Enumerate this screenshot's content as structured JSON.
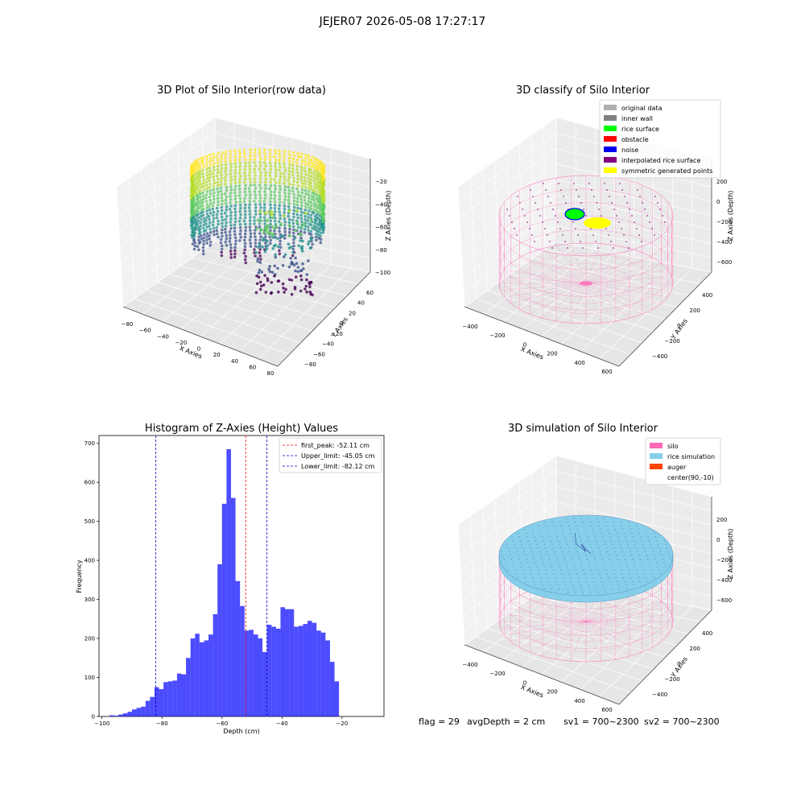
{
  "figure": {
    "suptitle": "JEJER07 2026-05-08 17:27:17",
    "status": {
      "flag": "flag = 29",
      "avg_depth": "avgDepth = 2 cm",
      "sv1": "sv1 = 700~2300",
      "sv2": "sv2 = 700~2300"
    }
  },
  "chart_data": [
    {
      "type": "scatter",
      "projection": "3d",
      "title": "3D Plot of Silo Interior(row data)",
      "xlabel": "X Axies",
      "ylabel": "Y Axies",
      "zlabel": "Z Axies (Depth)",
      "xticks": [
        "−80",
        "−60",
        "−40",
        "−20",
        "0",
        "20",
        "40",
        "60",
        "80"
      ],
      "yticks": [
        "−80",
        "−60",
        "−40",
        "−20",
        "0",
        "20",
        "40",
        "60"
      ],
      "zticks": [
        "−20",
        "−40",
        "−60",
        "−80",
        "−100"
      ],
      "colormap": "viridis",
      "grid": true
    },
    {
      "type": "scatter",
      "projection": "3d",
      "title": "3D classify of Silo Interior",
      "xlabel": "X Axies",
      "ylabel": "Y Axies",
      "zlabel": "Z Axies (Depth)",
      "xticks": [
        "−400",
        "−200",
        "0",
        "200",
        "400",
        "600"
      ],
      "yticks": [
        "−400",
        "−200",
        "0",
        "200",
        "400"
      ],
      "zticks": [
        "200",
        "0",
        "−200",
        "−400",
        "−600"
      ],
      "legend_position": "top-right",
      "legend": [
        {
          "label": "original data",
          "color": "#b0b0b0"
        },
        {
          "label": "inner wall",
          "color": "#808080"
        },
        {
          "label": "rice surface",
          "color": "#00ff00"
        },
        {
          "label": "obstacle",
          "color": "#ff0000"
        },
        {
          "label": "noise",
          "color": "#0000ee"
        },
        {
          "label": "interpolated rice surface",
          "color": "#800080"
        },
        {
          "label": "symmetric generated points",
          "color": "#ffff00"
        }
      ],
      "grid": true
    },
    {
      "type": "bar",
      "title": "Histogram of Z-Axies (Height) Values",
      "xlabel": "Depth (cm)",
      "ylabel": "Frequency",
      "xlim": [
        -101,
        -6
      ],
      "ylim": [
        0,
        720
      ],
      "xticks": [
        -100,
        -80,
        -60,
        -40,
        -20
      ],
      "yticks": [
        0,
        100,
        200,
        300,
        400,
        500,
        600,
        700
      ],
      "bin_edges": [
        -97.5,
        -96,
        -94.5,
        -93,
        -91.5,
        -90,
        -88.5,
        -87,
        -85.5,
        -84,
        -82.5,
        -81,
        -79.5,
        -78,
        -76.5,
        -75,
        -73.5,
        -72,
        -70.5,
        -69,
        -67.5,
        -66,
        -64.5,
        -63,
        -61.5,
        -60,
        -58.5,
        -57,
        -55.5,
        -54,
        -52.5,
        -51,
        -49.5,
        -48,
        -46.5,
        -45,
        -43.5,
        -42,
        -40.5,
        -39,
        -37.5,
        -36,
        -34.5,
        -33,
        -31.5,
        -30,
        -28.5,
        -27,
        -25.5,
        -24,
        -22.5,
        -21,
        -19.5,
        -18,
        -16.5,
        -15,
        -13.5,
        -12,
        -10.5,
        -9,
        -7.5
      ],
      "values": [
        3,
        2,
        5,
        8,
        12,
        18,
        22,
        25,
        40,
        50,
        75,
        70,
        88,
        90,
        92,
        110,
        108,
        150,
        200,
        212,
        190,
        195,
        210,
        262,
        390,
        545,
        685,
        560,
        347,
        283,
        220,
        222,
        210,
        200,
        165,
        235,
        230,
        225,
        280,
        275,
        275,
        230,
        232,
        237,
        245,
        240,
        220,
        215,
        195,
        140,
        90,
        0,
        0,
        0,
        0,
        0,
        0,
        0,
        0,
        0
      ],
      "bar_color": "#0000ff",
      "reference_lines": [
        {
          "label": "first_peak: -52.11 cm",
          "x": -52.11,
          "color": "#ff0000"
        },
        {
          "label": "Upper_limit: -45.05 cm",
          "x": -45.05,
          "color": "#0000cc"
        },
        {
          "label": "Lower_limit: -82.12 cm",
          "x": -82.12,
          "color": "#0000cc"
        }
      ],
      "legend_position": "top-right"
    },
    {
      "type": "scatter",
      "projection": "3d",
      "title": "3D simulation of Silo Interior",
      "xlabel": "X Axies",
      "ylabel": "Y Axies",
      "zlabel": "Z Axies (Depth)",
      "xticks": [
        "−400",
        "−200",
        "0",
        "200",
        "400",
        "600"
      ],
      "yticks": [
        "−400",
        "−200",
        "0",
        "200",
        "400"
      ],
      "zticks": [
        "200",
        "0",
        "−200",
        "−400",
        "−600"
      ],
      "legend_position": "top-right",
      "legend": [
        {
          "label": "silo",
          "color": "#ff69b4"
        },
        {
          "label": "rice simulation",
          "color": "#87ceeb"
        },
        {
          "label": "auger",
          "color": "#ff4500"
        },
        {
          "label": "center(90,-10)",
          "color": ""
        }
      ],
      "grid": true
    }
  ]
}
